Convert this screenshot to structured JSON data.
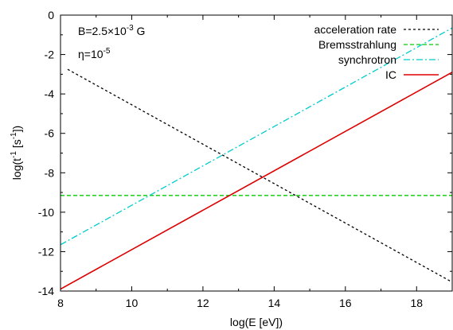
{
  "chart_data": {
    "type": "line",
    "xlabel": "log(E [eV])",
    "ylabel": "log(t",
    "ylabel_sup1": "-1",
    "ylabel_mid": " [s",
    "ylabel_sup2": "-1",
    "ylabel_end": "])",
    "xlim": [
      8,
      19
    ],
    "ylim": [
      -14,
      0
    ],
    "xticks": [
      8,
      10,
      12,
      14,
      16,
      18
    ],
    "yticks": [
      0,
      -2,
      -4,
      -6,
      -8,
      -10,
      -12,
      -14
    ],
    "xtick_labels": [
      "8",
      "10",
      "12",
      "14",
      "16",
      "18"
    ],
    "ytick_labels": [
      "0",
      "-2",
      "-4",
      "-6",
      "-8",
      "-10",
      "-12",
      "-14"
    ],
    "legend_position": "top-right",
    "annotations": {
      "b_field_prefix": "B=2.5×10",
      "b_field_exp": "-3",
      "b_field_suffix": " G",
      "eta_prefix": "η=10",
      "eta_exp": "-5"
    },
    "series": [
      {
        "name": "acceleration rate",
        "color": "#000000",
        "dash": "dotted",
        "x": [
          8.2,
          19
        ],
        "y": [
          -2.75,
          -13.55
        ]
      },
      {
        "name": "Bremsstrahlung",
        "color": "#00cc00",
        "dash": "dashed",
        "x": [
          8,
          19
        ],
        "y": [
          -9.15,
          -9.15
        ]
      },
      {
        "name": "synchrotron",
        "color": "#00cccc",
        "dash": "dashdot",
        "x": [
          8,
          19
        ],
        "y": [
          -11.65,
          -0.65
        ]
      },
      {
        "name": "IC",
        "color": "#dd0000",
        "dash": "solid",
        "x": [
          8,
          19
        ],
        "y": [
          -13.9,
          -2.9
        ]
      }
    ]
  }
}
